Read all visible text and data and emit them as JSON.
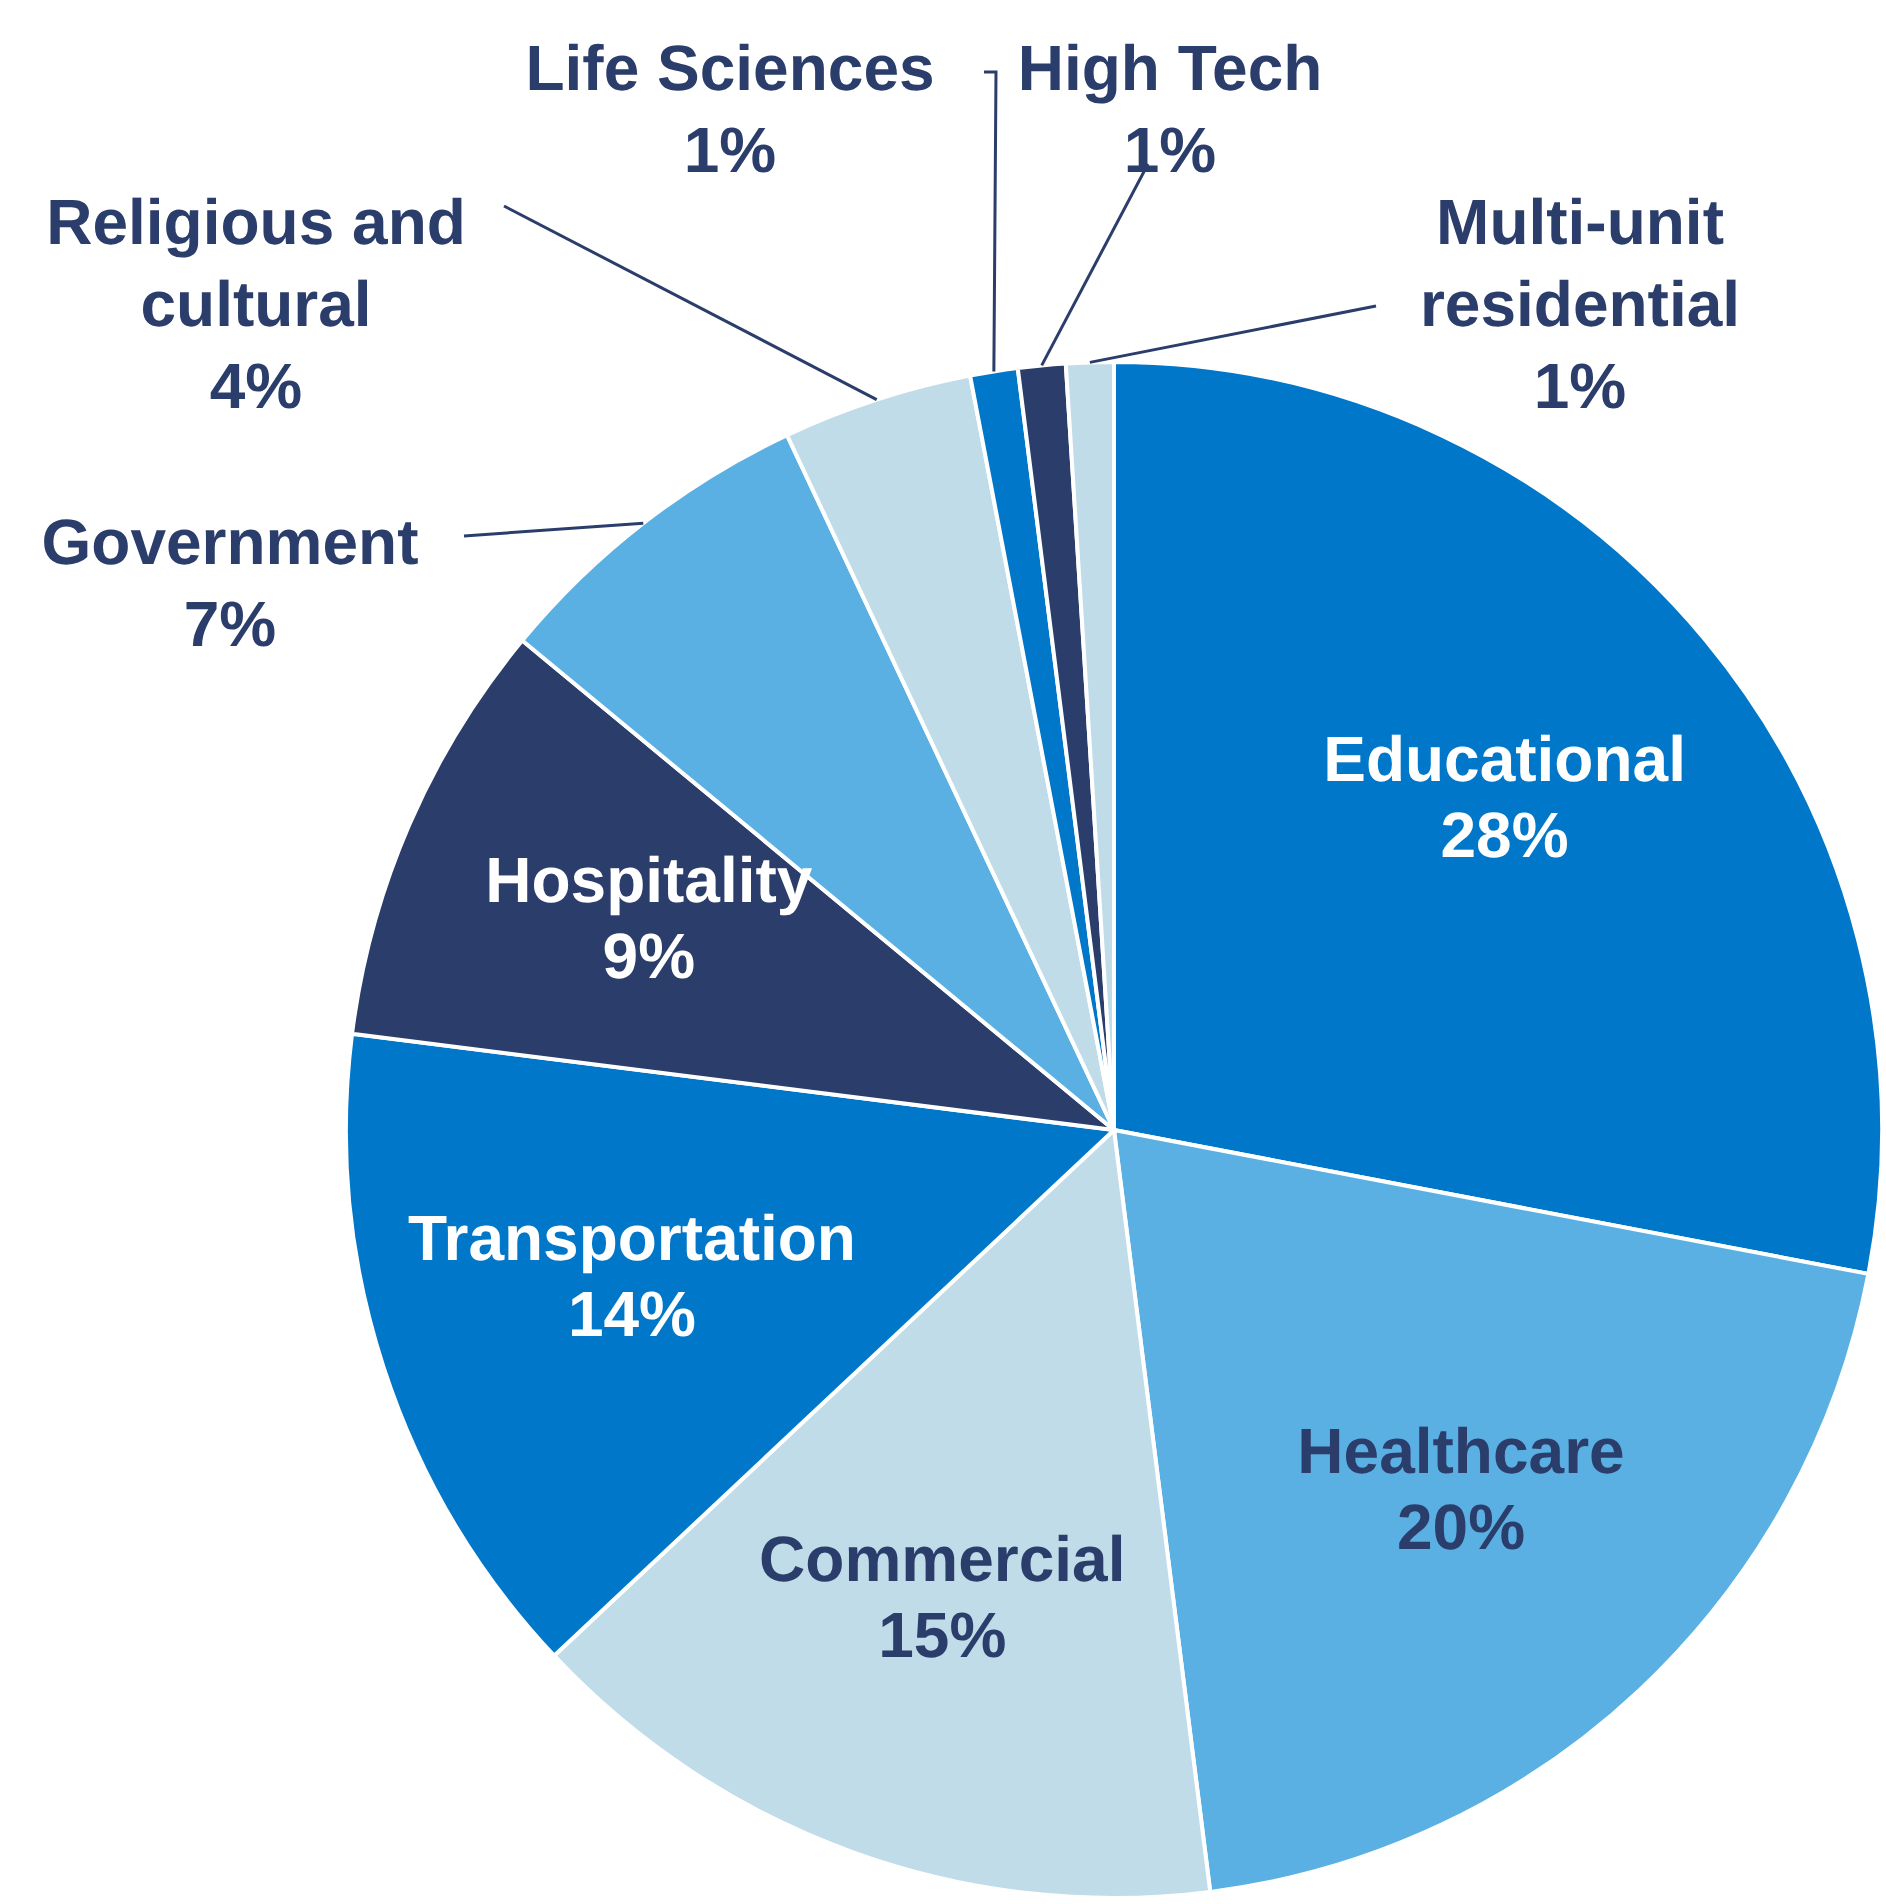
{
  "chart_data": {
    "type": "pie",
    "categories": [
      "Educational",
      "Healthcare",
      "Commercial",
      "Transportation",
      "Hospitality",
      "Government",
      "Religious and cultural",
      "Life Sciences",
      "High Tech",
      "Multi-unit residential"
    ],
    "values": [
      28,
      20,
      15,
      14,
      9,
      7,
      4,
      1,
      1,
      1
    ],
    "value_labels": [
      "28%",
      "20%",
      "15%",
      "14%",
      "9%",
      "7%",
      "4%",
      "1%",
      "1%",
      "1%"
    ],
    "colors": [
      "#0077c8",
      "#5ab0e2",
      "#c0dce8",
      "#0077c8",
      "#2b3d6a",
      "#5ab0e2",
      "#c0dce8",
      "#0077c8",
      "#2b3d6a",
      "#c0dce8"
    ],
    "legend": false
  }
}
